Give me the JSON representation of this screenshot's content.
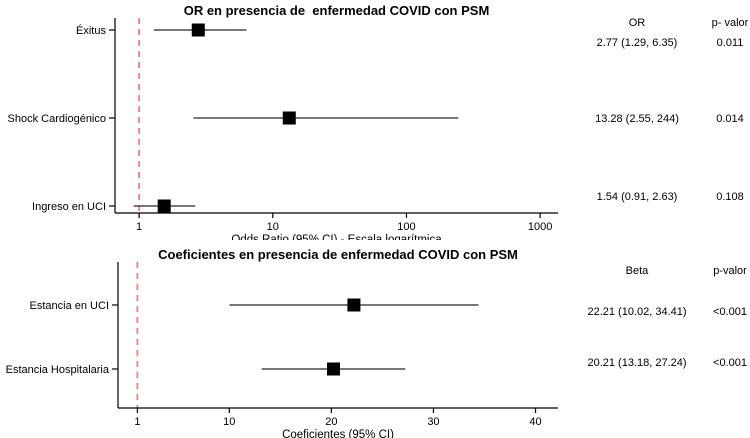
{
  "colors": {
    "marker": "#000000",
    "ci_line": "#4a4a4a",
    "axis": "#000000",
    "reference_line": "#e8837b",
    "text": "#000000",
    "background": "#ffffff"
  },
  "chart_data": [
    {
      "type": "scatter",
      "subtype": "forest-plot",
      "title": "OR en presencia de  enfermedad COVID con PSM",
      "xlabel": "Odds Ratio (95% CI) - Escala logarítmica",
      "xscale": "log10",
      "xlim": [
        0.66,
        1360
      ],
      "xticks": [
        1,
        10,
        100,
        1000
      ],
      "reference_line": {
        "x": 1,
        "style": "dashed"
      },
      "grid": false,
      "legend": "none",
      "table": {
        "col1_header": "OR",
        "col2_header": "p- valor"
      },
      "series": [
        {
          "name": "Éxitus",
          "estimate": 2.77,
          "ci_lower": 1.29,
          "ci_upper": 6.35,
          "estimate_label": "2.77 (1.29, 6.35)",
          "p_value": "0.011"
        },
        {
          "name": "Shock Cardiogénico",
          "estimate": 13.28,
          "ci_lower": 2.55,
          "ci_upper": 244,
          "estimate_label": "13.28 (2.55, 244)",
          "p_value": "0.014"
        },
        {
          "name": "Ingreso en UCI",
          "estimate": 1.54,
          "ci_lower": 0.91,
          "ci_upper": 2.63,
          "estimate_label": "1.54 (0.91, 2.63)",
          "p_value": "0.108"
        }
      ]
    },
    {
      "type": "scatter",
      "subtype": "forest-plot",
      "title": "Coeficientes en presencia de enfermedad COVID con PSM",
      "xlabel": "Coeficientes (95% CI)",
      "xscale": "linear",
      "xlim": [
        -0.9,
        42.2
      ],
      "xticks": [
        1,
        10,
        20,
        30,
        40
      ],
      "reference_line": {
        "x": 1,
        "style": "dashed"
      },
      "grid": false,
      "legend": "none",
      "table": {
        "col1_header": "Beta",
        "col2_header": "p-valor"
      },
      "series": [
        {
          "name": "Estancia en UCI",
          "estimate": 22.21,
          "ci_lower": 10.02,
          "ci_upper": 34.41,
          "estimate_label": "22.21 (10.02, 34.41)",
          "p_value": "<0.001"
        },
        {
          "name": "Estancia Hospitalaria",
          "estimate": 20.21,
          "ci_lower": 13.18,
          "ci_upper": 27.24,
          "estimate_label": "20.21 (13.18, 27.24)",
          "p_value": "<0.001"
        }
      ]
    }
  ]
}
